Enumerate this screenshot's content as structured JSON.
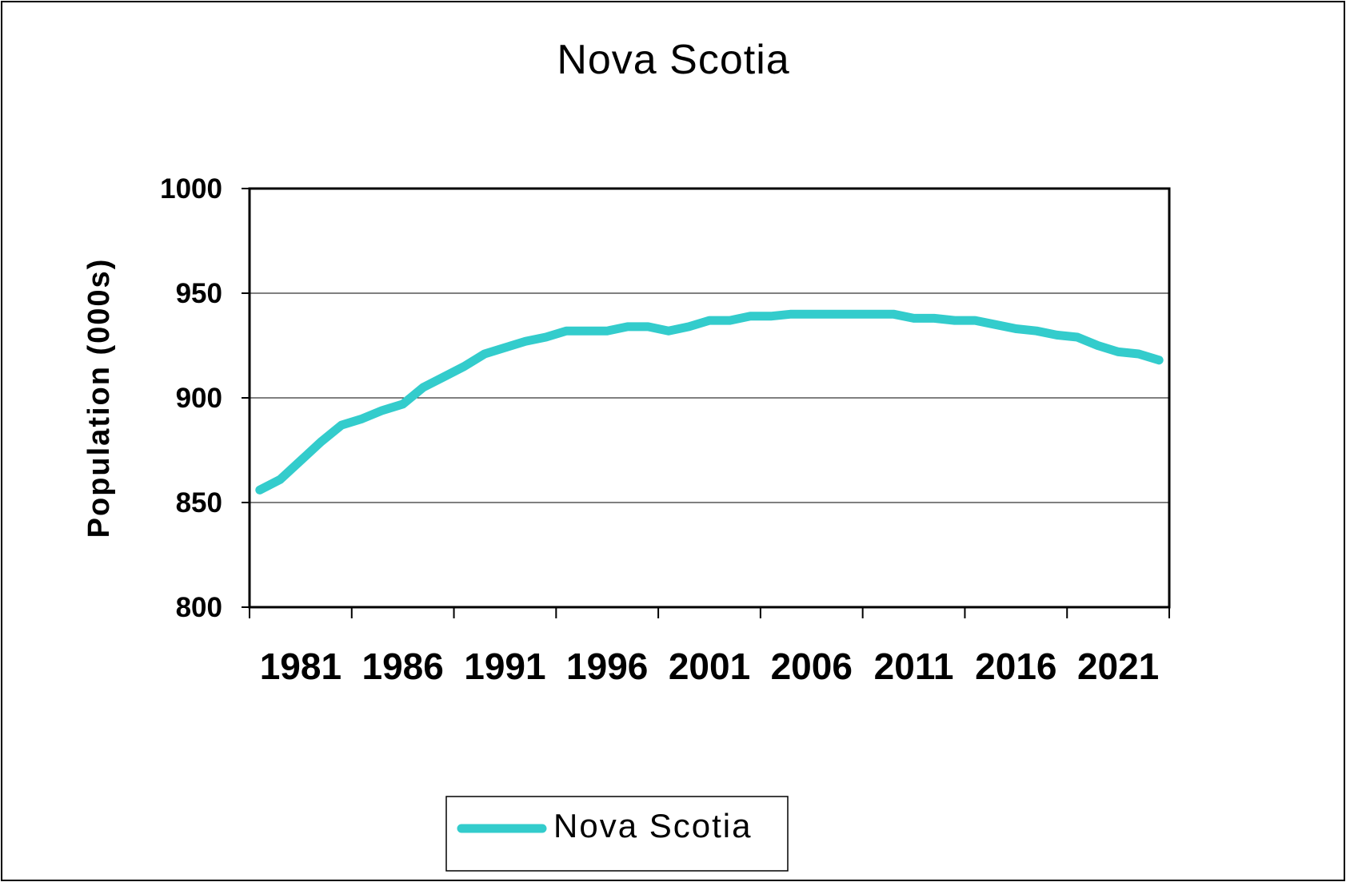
{
  "chart_data": {
    "type": "line",
    "title": "Nova Scotia",
    "ylabel": "Population (000s)",
    "xlabel": "",
    "ylim": [
      800,
      1000
    ],
    "yticks": [
      "800",
      "850",
      "900",
      "950",
      "1000"
    ],
    "xticks": [
      "1981",
      "1986",
      "1991",
      "1996",
      "2001",
      "2006",
      "2011",
      "2016",
      "2021"
    ],
    "grid": "horizontal",
    "legend": "bottom-center",
    "colors": {
      "line": "#33cccc",
      "axis": "#000000",
      "grid": "#000000"
    },
    "series": [
      {
        "name": "Nova Scotia",
        "x": [
          1981,
          1982,
          1983,
          1984,
          1985,
          1986,
          1987,
          1988,
          1989,
          1990,
          1991,
          1992,
          1993,
          1994,
          1995,
          1996,
          1997,
          1998,
          1999,
          2000,
          2001,
          2002,
          2003,
          2004,
          2005,
          2006,
          2007,
          2008,
          2009,
          2010,
          2011,
          2012,
          2013,
          2014,
          2015,
          2016,
          2017,
          2018,
          2019,
          2020,
          2021,
          2022,
          2023,
          2024,
          2025
        ],
        "values": [
          856,
          861,
          870,
          879,
          887,
          890,
          894,
          897,
          905,
          910,
          915,
          921,
          924,
          927,
          929,
          932,
          932,
          932,
          934,
          934,
          932,
          934,
          937,
          937,
          939,
          939,
          940,
          940,
          940,
          940,
          940,
          940,
          938,
          938,
          937,
          937,
          935,
          933,
          932,
          930,
          929,
          925,
          922,
          921,
          918
        ]
      }
    ]
  }
}
